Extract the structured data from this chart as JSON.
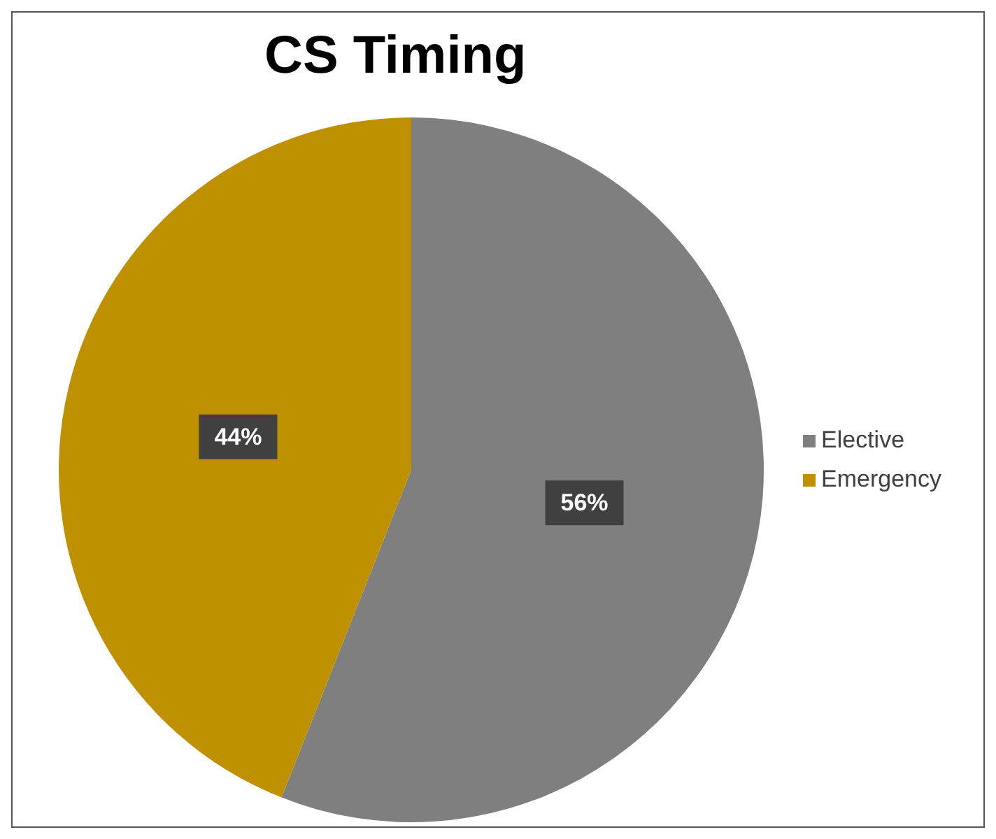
{
  "chart_data": {
    "type": "pie",
    "title": "CS Timing",
    "categories": [
      "Elective",
      "Emergency"
    ],
    "values": [
      56,
      44
    ],
    "value_labels": [
      "56%",
      "44%"
    ],
    "colors": [
      "#7f7f7f",
      "#bf9000"
    ],
    "legend": "right"
  }
}
